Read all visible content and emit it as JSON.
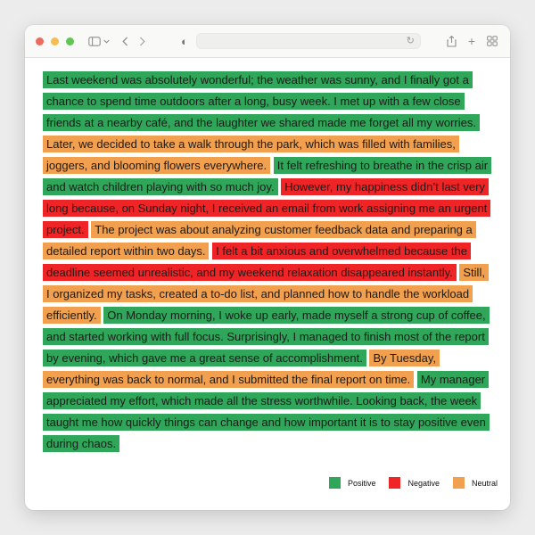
{
  "toolbar": {
    "url_value": "",
    "icons": [
      "close-icon",
      "minimize-icon",
      "zoom-icon",
      "sidebar-icon",
      "chevron-down-icon",
      "back-icon",
      "forward-icon",
      "page-appearance-icon",
      "reload-icon",
      "share-icon",
      "plus-icon",
      "tab-overview-icon"
    ]
  },
  "colors": {
    "positive": "#2fa65a",
    "negative": "#ee2426",
    "neutral": "#f0a04e"
  },
  "document": {
    "sentences": [
      {
        "text": "Last weekend was absolutely wonderful; the weather was sunny, and I finally got a chance to spend time outdoors after a long, busy week. I met up with a few close friends at a nearby café, and the laughter we shared made me forget all my worries.",
        "sentiment": "positive"
      },
      {
        "text": "Later, we decided to take a walk through the park, which was filled with families, joggers, and blooming flowers everywhere.",
        "sentiment": "neutral"
      },
      {
        "text": "It felt refreshing to breathe in the crisp air and watch children playing with so much joy.",
        "sentiment": "positive"
      },
      {
        "text": "However, my happiness didn’t last very long because, on Sunday night, I received an email from work assigning me an urgent project.",
        "sentiment": "negative"
      },
      {
        "text": "The project was about analyzing customer feedback data and preparing a detailed report within two days.",
        "sentiment": "neutral"
      },
      {
        "text": "I felt a bit anxious and overwhelmed because the deadline seemed unrealistic, and my weekend relaxation disappeared instantly.",
        "sentiment": "negative"
      },
      {
        "text": "Still, I organized my tasks, created a to-do list, and planned how to handle the workload efficiently.",
        "sentiment": "neutral"
      },
      {
        "text": "On Monday morning, I woke up early, made myself a strong cup of coffee, and started working with full focus. Surprisingly, I managed to finish most of the report by evening, which gave me a great sense of accomplishment.",
        "sentiment": "positive"
      },
      {
        "text": "By Tuesday, everything was back to normal, and I submitted the final report on time.",
        "sentiment": "neutral"
      },
      {
        "text": "My manager appreciated my effort, which made all the stress worthwhile. Looking back, the week taught me how quickly things can change and how important it is to stay positive even during chaos.",
        "sentiment": "positive"
      }
    ]
  },
  "legend": {
    "items": [
      {
        "label": "Positive",
        "sentiment": "positive"
      },
      {
        "label": "Negative",
        "sentiment": "negative"
      },
      {
        "label": "Neutral",
        "sentiment": "neutral"
      }
    ]
  }
}
